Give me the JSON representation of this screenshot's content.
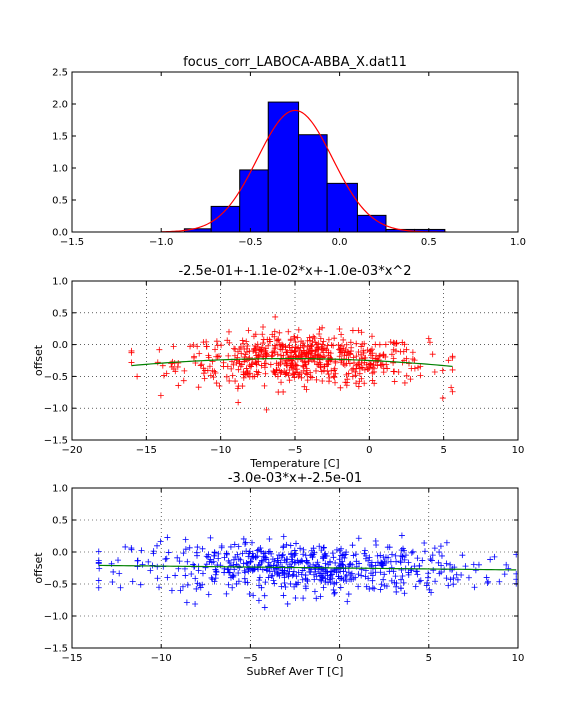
{
  "chart_data": [
    {
      "type": "bar",
      "title": "focus_corr_LABOCA-ABBA_X.dat11",
      "xlabel": "",
      "ylabel": "",
      "xlim": [
        -1.5,
        1.0
      ],
      "ylim": [
        0.0,
        2.5
      ],
      "xticks": [
        "−1.5",
        "−1.0",
        "−0.5",
        "0.0",
        "0.5",
        "1.0"
      ],
      "yticks": [
        "0.0",
        "0.5",
        "1.0",
        "1.5",
        "2.0",
        "2.5"
      ],
      "grid": false,
      "bar_color": "#0000ff",
      "bins": [
        {
          "x0": -0.87,
          "x1": -0.72,
          "value": 0.05
        },
        {
          "x0": -0.72,
          "x1": -0.56,
          "value": 0.4
        },
        {
          "x0": -0.56,
          "x1": -0.4,
          "value": 0.97
        },
        {
          "x0": -0.4,
          "x1": -0.23,
          "value": 2.03
        },
        {
          "x0": -0.23,
          "x1": -0.07,
          "value": 1.52
        },
        {
          "x0": -0.07,
          "x1": 0.1,
          "value": 0.76
        },
        {
          "x0": 0.1,
          "x1": 0.26,
          "value": 0.26
        },
        {
          "x0": 0.26,
          "x1": 0.42,
          "value": 0.04
        },
        {
          "x0": 0.42,
          "x1": 0.59,
          "value": 0.04
        }
      ],
      "fit_curve": {
        "type": "gaussian",
        "mean": -0.25,
        "sigma": 0.21,
        "peak": 1.9,
        "color": "#ff0000",
        "x_range": [
          -1.0,
          0.6
        ]
      }
    },
    {
      "type": "scatter",
      "title": "-2.5e-01+-1.1e-02*x+-1.0e-03*x^2",
      "xlabel": "Temperature [C]",
      "ylabel": "offset",
      "xlim": [
        -20,
        10
      ],
      "ylim": [
        -1.5,
        1.0
      ],
      "xticks": [
        "−20",
        "−15",
        "−10",
        "−5",
        "0",
        "5",
        "10"
      ],
      "yticks": [
        "−1.5",
        "−1.0",
        "−0.5",
        "0.0",
        "0.5",
        "1.0"
      ],
      "grid": true,
      "marker": "+",
      "point_color": "#ff0000",
      "x_range": [
        -16,
        5.6
      ],
      "center": {
        "x": -4.5,
        "x_sigma": 4.2,
        "y_sigma": 0.2
      },
      "fit_curve": {
        "type": "polynomial",
        "coefficients": [
          -0.25,
          -0.011,
          -0.001
        ],
        "color": "#008000",
        "x_range": [
          -16,
          5.6
        ]
      }
    },
    {
      "type": "scatter",
      "title": "-3.0e-03*x+-2.5e-01",
      "xlabel": "SubRef Aver T [C]",
      "ylabel": "offset",
      "xlim": [
        -15,
        10
      ],
      "ylim": [
        -1.5,
        1.0
      ],
      "xticks": [
        "−15",
        "−10",
        "−5",
        "0",
        "5",
        "10"
      ],
      "yticks": [
        "−1.5",
        "−1.0",
        "−0.5",
        "0.0",
        "0.5",
        "1.0"
      ],
      "grid": true,
      "marker": "+",
      "point_color": "#0000ff",
      "x_range": [
        -13.5,
        9.9
      ],
      "center": {
        "x": -2.0,
        "x_sigma": 4.8,
        "y_sigma": 0.2
      },
      "fit_curve": {
        "type": "linear",
        "coefficients": [
          -0.25,
          -0.003
        ],
        "color": "#008000",
        "x_range": [
          -13.5,
          9.9
        ]
      }
    }
  ]
}
